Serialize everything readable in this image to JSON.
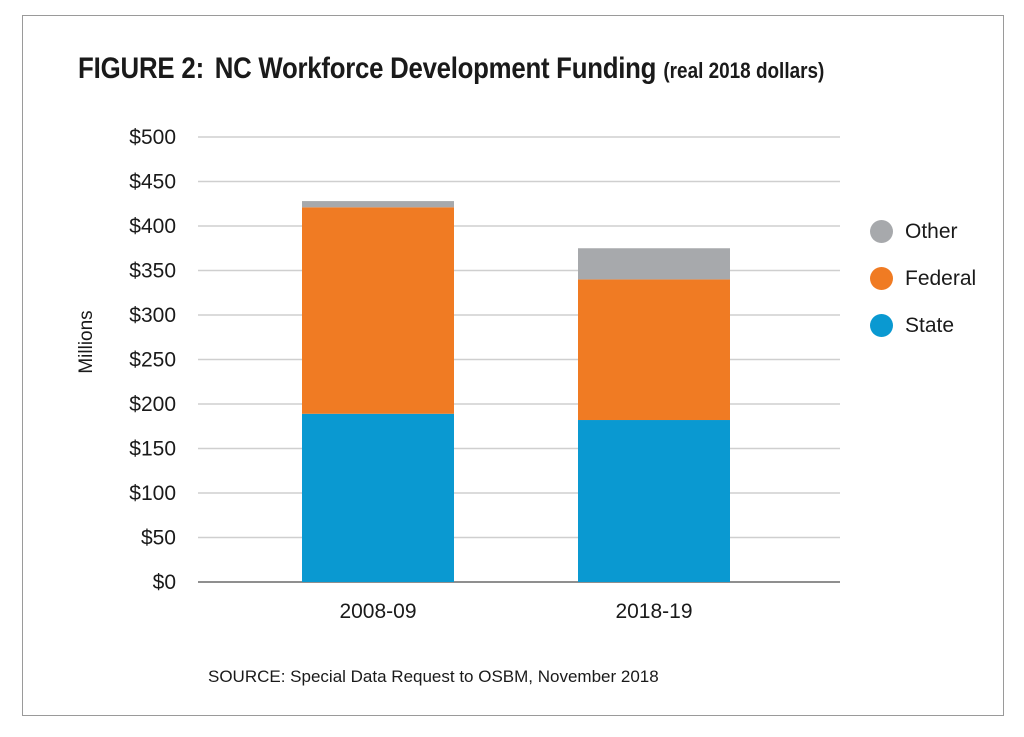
{
  "figure": {
    "label": "FIGURE 2:",
    "title": "NC Workforce Development Funding",
    "subtitle": "(real 2018 dollars)"
  },
  "source": "SOURCE:  Special Data Request to OSBM, November 2018",
  "chart_data": {
    "type": "bar",
    "stacked": true,
    "categories": [
      "2008-09",
      "2018-19"
    ],
    "series": [
      {
        "name": "State",
        "values": [
          189,
          182
        ],
        "color": "#0a99d1"
      },
      {
        "name": "Federal",
        "values": [
          232,
          158
        ],
        "color": "#f07b23"
      },
      {
        "name": "Other",
        "values": [
          7,
          35
        ],
        "color": "#a7a9ac"
      }
    ],
    "ylabel": "Millions",
    "xlabel": "",
    "ylim": [
      0,
      500
    ],
    "y_ticks": [
      0,
      50,
      100,
      150,
      200,
      250,
      300,
      350,
      400,
      450,
      500
    ],
    "y_tick_labels": [
      "$0",
      "$50",
      "$100",
      "$150",
      "$200",
      "$250",
      "$300",
      "$350",
      "$400",
      "$450",
      "$500"
    ],
    "legend_order": [
      "Other",
      "Federal",
      "State"
    ],
    "legend_position": "right",
    "grid": true
  }
}
